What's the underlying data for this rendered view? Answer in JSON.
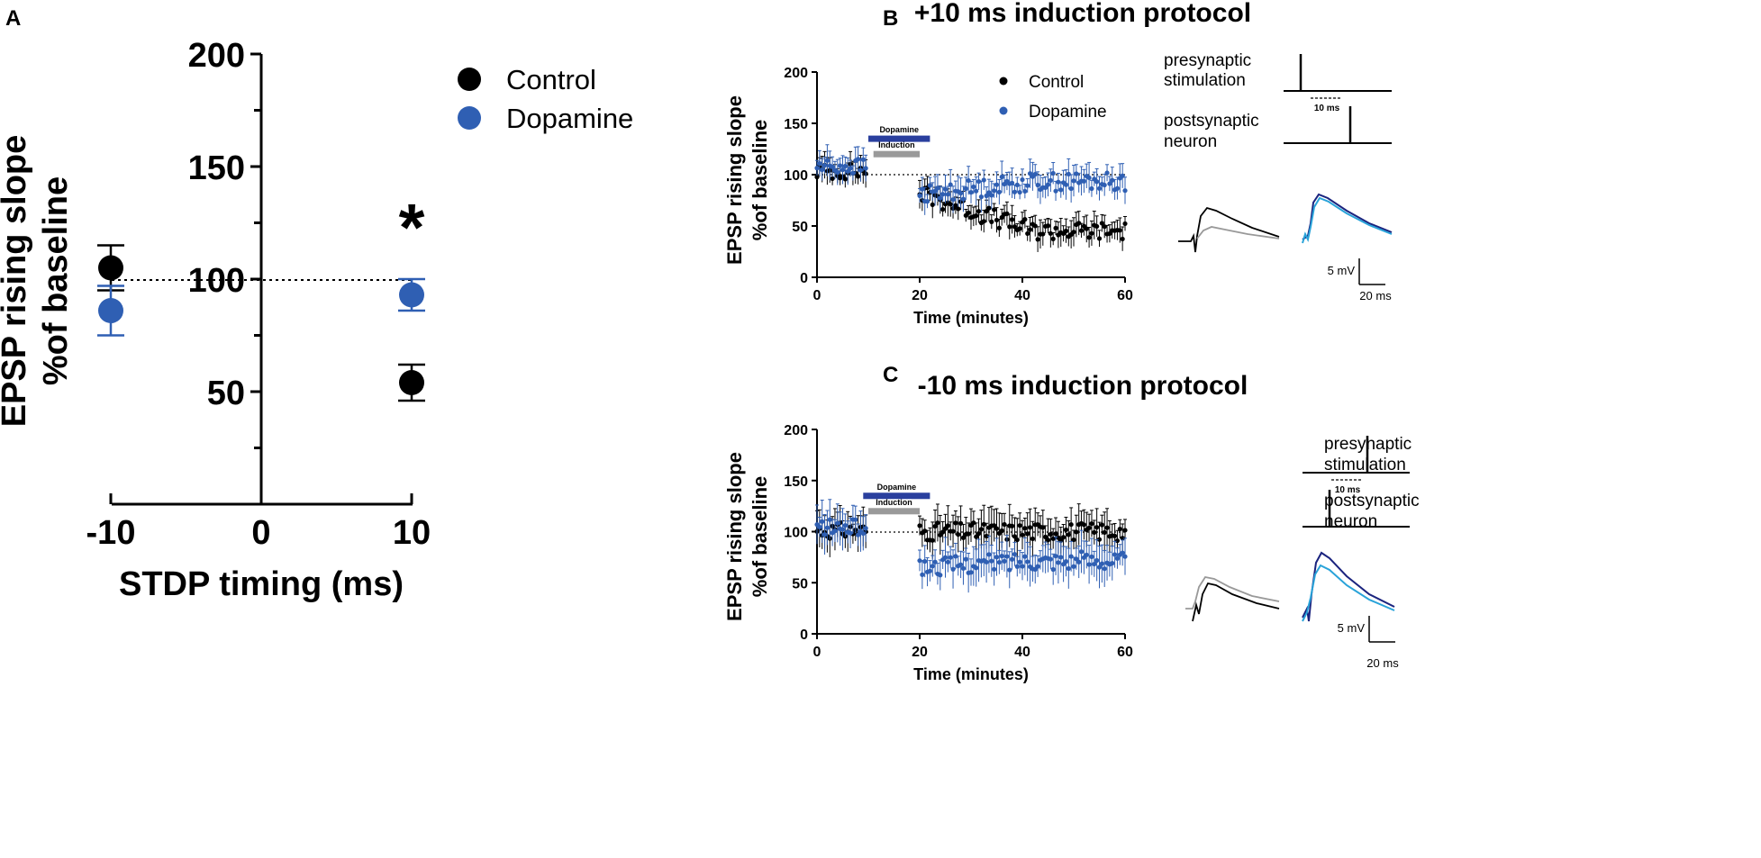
{
  "colors": {
    "control": "#000000",
    "dopamine": "#2f5fb3",
    "dopamine_bar": "#2a3f9e",
    "induction_bar": "#9a9a9a",
    "trace_grey": "#999999",
    "trace_navy": "#1a237e",
    "trace_cyan": "#29a3d9"
  },
  "chart_data": [
    {
      "panel": "A",
      "type": "scatter",
      "xlabel": "STDP timing (ms)",
      "ylabel_line1": "EPSP rising slope",
      "ylabel_line2": "%of baseline",
      "x_ticks": [
        "-10",
        "0",
        "10"
      ],
      "y_ticks": [
        "50",
        "100",
        "150",
        "200"
      ],
      "xlim": [
        -10,
        10
      ],
      "ylim": [
        0,
        200
      ],
      "legend": [
        "Control",
        "Dopamine"
      ],
      "significance": "*",
      "series": [
        {
          "name": "Control",
          "points": [
            {
              "x": -10,
              "y": 105,
              "err": 10
            },
            {
              "x": 10,
              "y": 54,
              "err": 8
            }
          ]
        },
        {
          "name": "Dopamine",
          "points": [
            {
              "x": -10,
              "y": 86,
              "err": 11
            },
            {
              "x": 10,
              "y": 93,
              "err": 7
            }
          ]
        }
      ]
    },
    {
      "panel": "B",
      "type": "scatter",
      "title": "+10 ms induction protocol",
      "xlabel": "Time (minutes)",
      "ylabel_line1": "EPSP rising slope",
      "ylabel_line2": "%of baseline",
      "x_ticks": [
        "0",
        "20",
        "40",
        "60"
      ],
      "y_ticks": [
        "0",
        "50",
        "100",
        "150",
        "200"
      ],
      "xlim": [
        0,
        60
      ],
      "ylim": [
        0,
        200
      ],
      "legend": [
        "Control",
        "Dopamine"
      ],
      "bars": [
        {
          "label": "Dopamine",
          "from": 10,
          "to": 22
        },
        {
          "label": "Induction",
          "from": 11,
          "to": 20
        }
      ],
      "series": [
        {
          "name": "Control",
          "start": 20,
          "end": 60,
          "v0": 82,
          "v1": 45,
          "err": 10,
          "base": 103
        },
        {
          "name": "Dopamine",
          "start": 20,
          "end": 60,
          "v0": 80,
          "v1": 93,
          "err": 11,
          "base": 108
        }
      ],
      "diagram": {
        "pre_label_1": "presynaptic",
        "pre_label_2": "stimulation",
        "post_label_1": "postsynaptic",
        "post_label_2": "neuron",
        "interval": "10 ms"
      },
      "scale": {
        "amp": "5 mV",
        "time": "20 ms"
      }
    },
    {
      "panel": "C",
      "type": "scatter",
      "title": "-10 ms induction protocol",
      "xlabel": "Time (minutes)",
      "ylabel_line1": "EPSP rising slope",
      "ylabel_line2": "%of baseline",
      "x_ticks": [
        "0",
        "20",
        "40",
        "60"
      ],
      "y_ticks": [
        "0",
        "50",
        "100",
        "150",
        "200"
      ],
      "xlim": [
        0,
        60
      ],
      "ylim": [
        0,
        200
      ],
      "bars": [
        {
          "label": "Dopamine",
          "from": 9,
          "to": 22
        },
        {
          "label": "Induction",
          "from": 10,
          "to": 20
        }
      ],
      "series": [
        {
          "name": "Control",
          "start": 20,
          "end": 60,
          "v0": 100,
          "v1": 100,
          "err": 15,
          "base": 101
        },
        {
          "name": "Dopamine",
          "start": 20,
          "end": 60,
          "v0": 65,
          "v1": 72,
          "err": 15,
          "base": 104
        }
      ],
      "diagram": {
        "pre_label_1": "presynaptic",
        "pre_label_2": "stimulation",
        "post_label_1": "postsynaptic",
        "post_label_2": "neuron",
        "interval": "10 ms"
      },
      "scale": {
        "amp": "5 mV",
        "time": "20 ms"
      }
    }
  ],
  "panel_labels": {
    "a": "A",
    "b": "B",
    "c": "C"
  }
}
